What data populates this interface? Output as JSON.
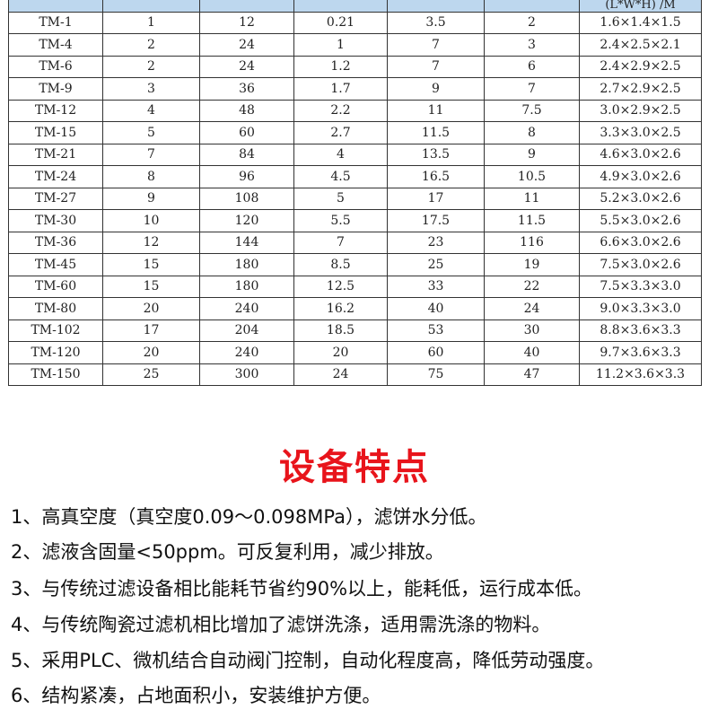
{
  "table": {
    "header": [
      "",
      "",
      "",
      "",
      "",
      "",
      "(L*W*H) /M"
    ],
    "rows": [
      [
        "TM-1",
        "1",
        "12",
        "0.21",
        "3.5",
        "2",
        "1.6×1.4×1.5"
      ],
      [
        "TM-4",
        "2",
        "24",
        "1",
        "7",
        "3",
        "2.4×2.5×2.1"
      ],
      [
        "TM-6",
        "2",
        "24",
        "1.2",
        "7",
        "6",
        "2.4×2.9×2.5"
      ],
      [
        "TM-9",
        "3",
        "36",
        "1.7",
        "9",
        "7",
        "2.7×2.9×2.5"
      ],
      [
        "TM-12",
        "4",
        "48",
        "2.2",
        "11",
        "7.5",
        "3.0×2.9×2.5"
      ],
      [
        "TM-15",
        "5",
        "60",
        "2.7",
        "11.5",
        "8",
        "3.3×3.0×2.5"
      ],
      [
        "TM-21",
        "7",
        "84",
        "4",
        "13.5",
        "9",
        "4.6×3.0×2.6"
      ],
      [
        "TM-24",
        "8",
        "96",
        "4.5",
        "16.5",
        "10.5",
        "4.9×3.0×2.6"
      ],
      [
        "TM-27",
        "9",
        "108",
        "5",
        "17",
        "11",
        "5.2×3.0×2.6"
      ],
      [
        "TM-30",
        "10",
        "120",
        "5.5",
        "17.5",
        "11.5",
        "5.5×3.0×2.6"
      ],
      [
        "TM-36",
        "12",
        "144",
        "7",
        "23",
        "116",
        "6.6×3.0×2.6"
      ],
      [
        "TM-45",
        "15",
        "180",
        "8.5",
        "25",
        "19",
        "7.5×3.0×2.6"
      ],
      [
        "TM-60",
        "15",
        "180",
        "12.5",
        "33",
        "22",
        "7.5×3.3×3.0"
      ],
      [
        "TM-80",
        "20",
        "240",
        "16.2",
        "40",
        "24",
        "9.0×3.3×3.0"
      ],
      [
        "TM-102",
        "17",
        "204",
        "18.5",
        "53",
        "30",
        "8.8×3.6×3.3"
      ],
      [
        "TM-120",
        "20",
        "240",
        "20",
        "60",
        "40",
        "9.7×3.6×3.3"
      ],
      [
        "TM-150",
        "25",
        "300",
        "24",
        "75",
        "47",
        "11.2×3.6×3.3"
      ]
    ]
  },
  "section_title": "设备特点",
  "features": [
    "1、高真空度（真空度0.09～0.098MPa），滤饼水分低。",
    "2、滤液含固量<50ppm。可反复利用，减少排放。",
    "3、与传统过滤设备相比能耗节省约90%以上，能耗低，运行成本低。",
    "4、与传统陶瓷过滤机相比增加了滤饼洗涤，适用需洗涤的物料。",
    "5、采用PLC、微机结合自动阀门控制，自动化程度高，降低劳动强度。",
    "6、结构紧凑，占地面积小，安装维护方便。"
  ],
  "colors": {
    "header_bg": "#bdd7ee",
    "title": "#e8141b"
  }
}
